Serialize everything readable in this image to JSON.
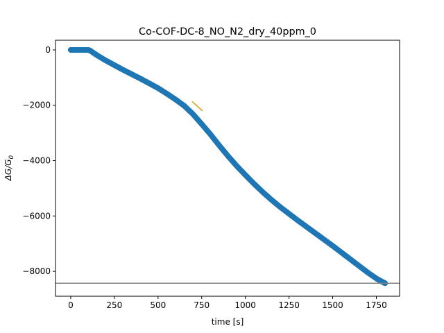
{
  "chart_data": {
    "type": "scatter",
    "title": "Co-COF-DC-8_NO_N2_dry_40ppm_0",
    "xlabel": "time [s]",
    "ylabel_main": "ΔG/G",
    "ylabel_sub": "0",
    "xlim": [
      -87,
      1883
    ],
    "ylim": [
      -8900,
      350
    ],
    "x_ticks": [
      0,
      250,
      500,
      750,
      1000,
      1250,
      1500,
      1750
    ],
    "y_ticks": [
      0,
      -2000,
      -4000,
      -6000,
      -8000
    ],
    "grid": false,
    "legend": "none",
    "colors": {
      "scatter": "#1f77b4",
      "fit_line": "#ff7f0e",
      "fit_line_overlay": "#bcbd22",
      "hline": "#808080",
      "axes": "#000000"
    },
    "series": [
      {
        "kind": "scatter",
        "x": [
          0,
          20,
          40,
          60,
          80,
          100,
          110,
          150,
          200,
          250,
          300,
          350,
          400,
          450,
          500,
          550,
          600,
          650,
          700,
          750,
          800,
          850,
          900,
          950,
          1000,
          1050,
          1100,
          1150,
          1200,
          1250,
          1300,
          1350,
          1400,
          1450,
          1500,
          1550,
          1600,
          1650,
          1700,
          1750,
          1790,
          1800
        ],
        "y": [
          0,
          0,
          0,
          0,
          0,
          0,
          -20,
          -190,
          -380,
          -550,
          -720,
          -880,
          -1040,
          -1210,
          -1380,
          -1580,
          -1790,
          -2020,
          -2320,
          -2680,
          -3050,
          -3450,
          -3830,
          -4190,
          -4520,
          -4840,
          -5140,
          -5420,
          -5680,
          -5920,
          -6160,
          -6390,
          -6620,
          -6850,
          -7080,
          -7320,
          -7560,
          -7800,
          -8040,
          -8260,
          -8400,
          -8430
        ]
      },
      {
        "kind": "line",
        "x": [
          695,
          755
        ],
        "y": [
          -1860,
          -2210
        ]
      }
    ],
    "hlines": [
      -8430
    ]
  }
}
